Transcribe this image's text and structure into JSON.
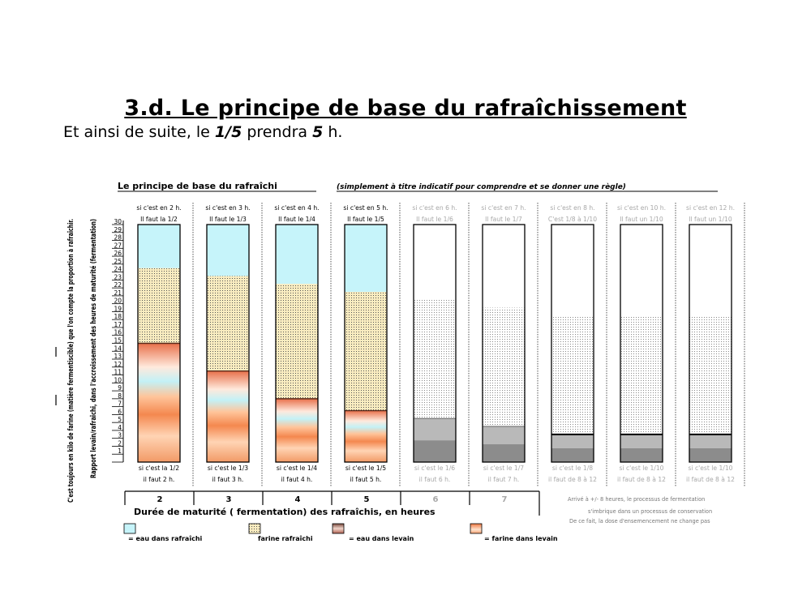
{
  "slide": {
    "title": "3.d. Le principe de base du rafraîchissement",
    "subtitle": {
      "prefix": "Et ainsi de suite, le ",
      "frac": "1/5",
      "mid": " prendra ",
      "hours": "5",
      "suffix": " h."
    }
  },
  "chart_data": {
    "type": "bar",
    "title": "Le principe de base du rafraîchi",
    "title_note": "(simplement à titre indicatif pour comprendre et se donner une règle)",
    "ylabel_1": "C'est toujours en kilo de farine (matière fermentiscible) que l'on compte la proportion à rafraîchir.",
    "ylabel_2": "Rapport levain/rafraîchi, dans l'accroissement des heures de maturité (fermentation)",
    "ylim": [
      0,
      30
    ],
    "yticks": [
      1,
      2,
      3,
      4,
      5,
      6,
      7,
      8,
      9,
      10,
      11,
      12,
      13,
      14,
      15,
      16,
      17,
      18,
      19,
      20,
      21,
      22,
      23,
      24,
      25,
      26,
      27,
      28,
      29,
      30
    ],
    "xlabel": "Durée de maturité ( fermentation) des rafraîchis, en heures",
    "hours": [
      "2",
      "3",
      "4",
      "5",
      "6",
      "7"
    ],
    "columns": [
      {
        "top": "si c'est en 2 h.",
        "rule": "Il faut la 1/2",
        "bottom": "si c'est la 1/2",
        "bottom2": "il faut 2 h.",
        "faded": false,
        "levain": 15,
        "flour_top": 24.5,
        "water_top": 30
      },
      {
        "top": "si c'est en 3 h.",
        "rule": "Il faut le 1/3",
        "bottom": "si c'est le 1/3",
        "bottom2": "il faut 3 h.",
        "faded": false,
        "levain": 11.5,
        "flour_top": 23.5,
        "water_top": 30
      },
      {
        "top": "si c'est en 4 h.",
        "rule": "Il faut le 1/4",
        "bottom": "si c'est le 1/4",
        "bottom2": "il faut 4 h.",
        "faded": false,
        "levain": 8,
        "flour_top": 22.5,
        "water_top": 30
      },
      {
        "top": "si c'est en 5 h.",
        "rule": "Il faut le 1/5",
        "bottom": "si c'est le 1/5",
        "bottom2": "il faut 5 h.",
        "faded": false,
        "levain": 6.5,
        "flour_top": 21.5,
        "water_top": 30
      },
      {
        "top": "si c'est en 6 h.",
        "rule": "Il faut le 1/6",
        "bottom": "si c'est le 1/6",
        "bottom2": "il faut 6 h.",
        "faded": true,
        "levain": 5.5,
        "flour_top": 20.5,
        "water_top": 30
      },
      {
        "top": "si c'est en 7 h.",
        "rule": "Il faut le 1/7",
        "bottom": "si c'est le 1/7",
        "bottom2": "il faut 7 h.",
        "faded": true,
        "levain": 4.5,
        "flour_top": 19.5,
        "water_top": 30
      },
      {
        "top": "si c'est en 8 h.",
        "rule": "C'est 1/8 à 1/10",
        "bottom": "si c'est le 1/8",
        "bottom2": "il faut de 8 à 12",
        "faded": true,
        "levain": 3.5,
        "flour_top": 18.5,
        "water_top": 30
      },
      {
        "top": "si c'est en 10 h.",
        "rule": "Il faut un 1/10",
        "bottom": "si c'est le 1/10",
        "bottom2": "il faut de 8 à 12",
        "faded": true,
        "levain": 3.5,
        "flour_top": 18.5,
        "water_top": 30
      },
      {
        "top": "si c'est en 12 h.",
        "rule": "Il faut un 1/10",
        "bottom": "si c'est le 1/10",
        "bottom2": "il faut de 8 à 12",
        "faded": true,
        "levain": 3.5,
        "flour_top": 18.5,
        "water_top": 30
      }
    ],
    "note": [
      "Arrivé à +/- 8 heures, le processus de fermentation",
      "s'imbrique dans un processus de conservation",
      "De ce fait, la dose d'ensemencement ne change pas"
    ],
    "legend": [
      {
        "name": "= eau dans rafraîchi",
        "color": "#c6f4fa"
      },
      {
        "name": "farine rafraîchi",
        "color": "#f9ecc0"
      },
      {
        "name": "= eau dans levain",
        "color": "#c46a5a"
      },
      {
        "name": "= farine dans levain",
        "color": "#f7a16a"
      }
    ]
  }
}
